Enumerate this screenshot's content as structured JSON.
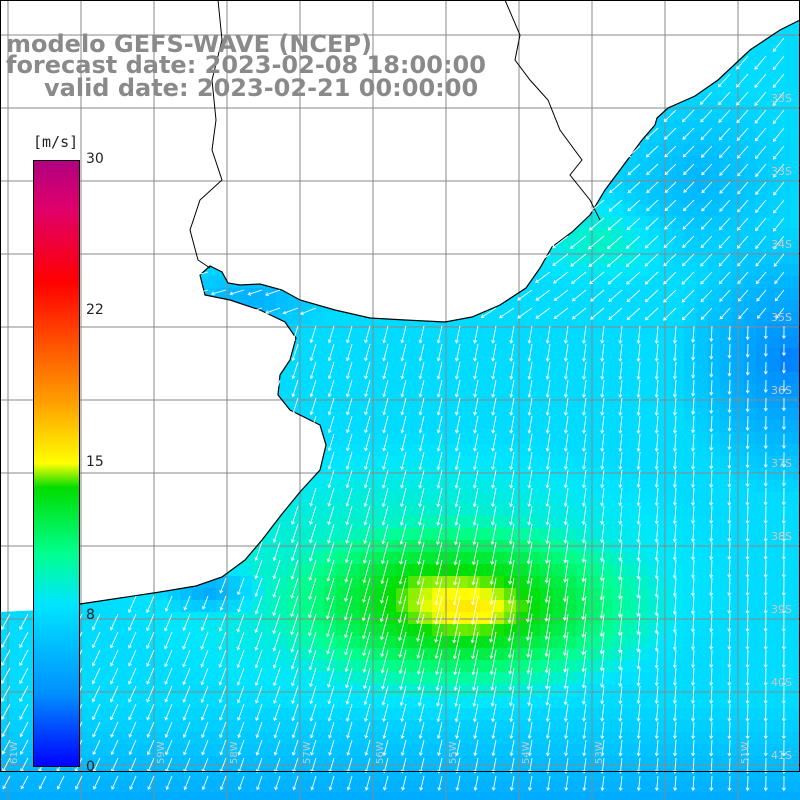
{
  "map": {
    "title_lines": [
      "modelo GEFS-WAVE (NCEP)",
      "forecast date: 2023-02-08 18:00:00",
      "valid date: 2023-02-21 00:00:00"
    ],
    "variable_unit": "[m/s]",
    "colorbar": {
      "min": 0,
      "max": 30,
      "tick_labels": [
        "30",
        "22",
        "15",
        "8",
        "0"
      ],
      "colors": [
        "#0000ff",
        "#0090ff",
        "#00e5ff",
        "#00ff90",
        "#00dd00",
        "#ffff00",
        "#ffa000",
        "#ff0000",
        "#b00080"
      ]
    },
    "latitude_labels": [
      "33S",
      "34S",
      "35S",
      "36S",
      "37S",
      "38S",
      "39S",
      "40S",
      "41S"
    ],
    "longitude_labels": [
      "61W",
      "60W",
      "59W",
      "58W",
      "57W",
      "56W",
      "55W",
      "54W",
      "53W",
      "52W",
      "51W"
    ],
    "land_color": "#ffffff",
    "arrow_color": "#ffffff",
    "grid_color": "#888888"
  }
}
